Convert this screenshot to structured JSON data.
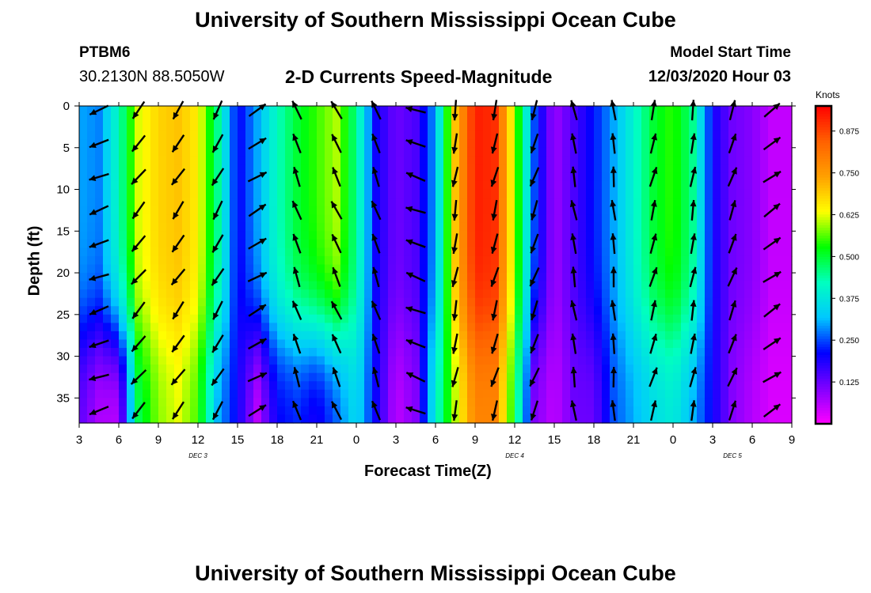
{
  "page": {
    "title": "University of Southern Mississippi Ocean Cube",
    "footer_title": "University of Southern Mississippi Ocean Cube",
    "station": "PTBM6",
    "coordinates": "30.2130N 88.5050W",
    "model_start_label": "Model Start Time",
    "model_start_value": "12/03/2020 Hour 03"
  },
  "chart_data": {
    "type": "heatmap",
    "title": "2-D Currents Speed-Magnitude",
    "xlabel": "Forecast Time(Z)",
    "ylabel": "Depth (ft)",
    "x_ticks": [
      "3",
      "6",
      "9",
      "12",
      "15",
      "18",
      "21",
      "0",
      "3",
      "6",
      "9",
      "12",
      "15",
      "18",
      "21",
      "0",
      "3",
      "6",
      "9"
    ],
    "x_range_hours": [
      0,
      54
    ],
    "day_labels": [
      {
        "label": "DEC 3",
        "hour": 9
      },
      {
        "label": "DEC 4",
        "hour": 33
      },
      {
        "label": "DEC 5",
        "hour": 49.5
      }
    ],
    "y_ticks": [
      "0",
      "5",
      "10",
      "15",
      "20",
      "25",
      "30",
      "35"
    ],
    "y_range_ft": [
      0,
      38
    ],
    "colorbar": {
      "unit": "Knots",
      "range": [
        0,
        0.95
      ],
      "ticks": [
        "0.125",
        "0.250",
        "0.375",
        "0.500",
        "0.625",
        "0.750",
        "0.875"
      ],
      "tick_values": [
        0.125,
        0.25,
        0.375,
        0.5,
        0.625,
        0.75,
        0.875
      ],
      "colors": [
        "#ff00ff",
        "#7f00ff",
        "#0000ff",
        "#00c8ff",
        "#00ffc0",
        "#00ff00",
        "#ffff00",
        "#ffa000",
        "#ff6000",
        "#ff0000"
      ]
    },
    "speed_profiles_knots": [
      {
        "hour": 0,
        "surface": 0.3,
        "bottom": 0.13
      },
      {
        "hour": 1.5,
        "surface": 0.28,
        "bottom": 0.06
      },
      {
        "hour": 3,
        "surface": 0.42,
        "bottom": 0.05
      },
      {
        "hour": 4.5,
        "surface": 0.62,
        "bottom": 0.48
      },
      {
        "hour": 6,
        "surface": 0.68,
        "bottom": 0.58
      },
      {
        "hour": 7.5,
        "surface": 0.7,
        "bottom": 0.62
      },
      {
        "hour": 9,
        "surface": 0.65,
        "bottom": 0.55
      },
      {
        "hour": 10.5,
        "surface": 0.45,
        "bottom": 0.3
      },
      {
        "hour": 12,
        "surface": 0.2,
        "bottom": 0.2
      },
      {
        "hour": 13.5,
        "surface": 0.3,
        "bottom": 0.05
      },
      {
        "hour": 15,
        "surface": 0.42,
        "bottom": 0.2
      },
      {
        "hour": 16.5,
        "surface": 0.5,
        "bottom": 0.22
      },
      {
        "hour": 18,
        "surface": 0.55,
        "bottom": 0.18
      },
      {
        "hour": 19.5,
        "surface": 0.6,
        "bottom": 0.25
      },
      {
        "hour": 21,
        "surface": 0.45,
        "bottom": 0.35
      },
      {
        "hour": 22.5,
        "surface": 0.2,
        "bottom": 0.2
      },
      {
        "hour": 24,
        "surface": 0.12,
        "bottom": 0.05
      },
      {
        "hour": 25.5,
        "surface": 0.15,
        "bottom": 0.1
      },
      {
        "hour": 27,
        "surface": 0.3,
        "bottom": 0.4
      },
      {
        "hour": 28.5,
        "surface": 0.7,
        "bottom": 0.6
      },
      {
        "hour": 30,
        "surface": 0.92,
        "bottom": 0.78
      },
      {
        "hour": 31.5,
        "surface": 0.9,
        "bottom": 0.78
      },
      {
        "hour": 33,
        "surface": 0.6,
        "bottom": 0.5
      },
      {
        "hour": 34.5,
        "surface": 0.25,
        "bottom": 0.1
      },
      {
        "hour": 36,
        "surface": 0.08,
        "bottom": 0.05
      },
      {
        "hour": 37.5,
        "surface": 0.15,
        "bottom": 0.12
      },
      {
        "hour": 39,
        "surface": 0.22,
        "bottom": 0.12
      },
      {
        "hour": 40.5,
        "surface": 0.3,
        "bottom": 0.25
      },
      {
        "hour": 42,
        "surface": 0.4,
        "bottom": 0.3
      },
      {
        "hour": 43.5,
        "surface": 0.5,
        "bottom": 0.35
      },
      {
        "hour": 45,
        "surface": 0.55,
        "bottom": 0.38
      },
      {
        "hour": 46.5,
        "surface": 0.45,
        "bottom": 0.3
      },
      {
        "hour": 48,
        "surface": 0.2,
        "bottom": 0.2
      },
      {
        "hour": 49.5,
        "surface": 0.12,
        "bottom": 0.1
      },
      {
        "hour": 51,
        "surface": 0.1,
        "bottom": 0.06
      },
      {
        "hour": 52.5,
        "surface": 0.05,
        "bottom": 0.03
      },
      {
        "hour": 54,
        "surface": 0.05,
        "bottom": 0.03
      }
    ],
    "vector_columns": [
      {
        "hour": 1.5,
        "direction_deg": 250
      },
      {
        "hour": 4.5,
        "direction_deg": 220
      },
      {
        "hour": 7.5,
        "direction_deg": 215
      },
      {
        "hour": 10.5,
        "direction_deg": 210
      },
      {
        "hour": 13.5,
        "direction_deg": 60
      },
      {
        "hour": 16.5,
        "direction_deg": 340
      },
      {
        "hour": 19.5,
        "direction_deg": 335
      },
      {
        "hour": 22.5,
        "direction_deg": 340
      },
      {
        "hour": 25.5,
        "direction_deg": 290
      },
      {
        "hour": 28.5,
        "direction_deg": 190
      },
      {
        "hour": 31.5,
        "direction_deg": 195
      },
      {
        "hour": 34.5,
        "direction_deg": 200
      },
      {
        "hour": 37.5,
        "direction_deg": 350
      },
      {
        "hour": 40.5,
        "direction_deg": 355
      },
      {
        "hour": 43.5,
        "direction_deg": 15
      },
      {
        "hour": 46.5,
        "direction_deg": 10
      },
      {
        "hour": 49.5,
        "direction_deg": 20
      },
      {
        "hour": 52.5,
        "direction_deg": 55
      }
    ]
  }
}
